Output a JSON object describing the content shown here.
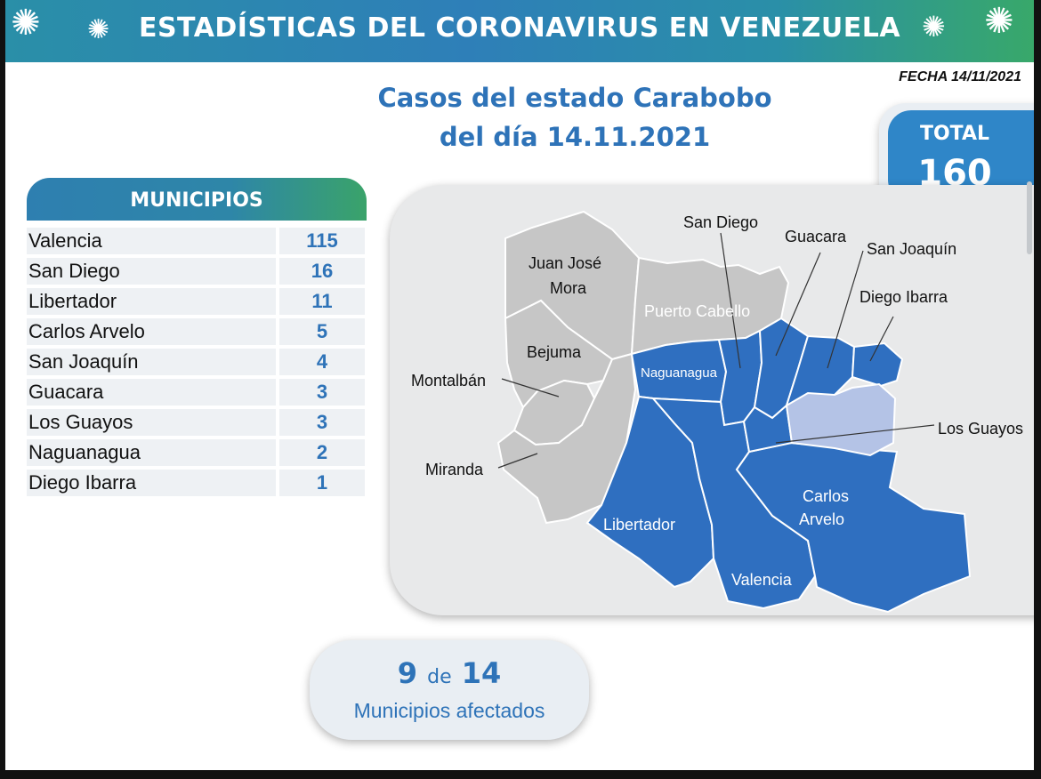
{
  "banner": {
    "title": "ESTADÍSTICAS DEL CORONAVIRUS EN VENEZUELA",
    "colors": {
      "start": "#2a8fa8",
      "end": "#38a86a"
    },
    "icons": [
      "coronavirus-icon",
      "coronavirus-icon",
      "coronavirus-icon",
      "coronavirus-icon"
    ]
  },
  "fecha": "FECHA 14/11/2021",
  "headline": {
    "line1": "Casos del estado Carabobo",
    "line2": "del día 14.11.2021"
  },
  "total": {
    "label": "TOTAL",
    "value": "160"
  },
  "municipios": {
    "header": "MUNICIPIOS",
    "rows": [
      {
        "name": "Valencia",
        "value": "115"
      },
      {
        "name": "San Diego",
        "value": "16"
      },
      {
        "name": "Libertador",
        "value": "11"
      },
      {
        "name": "Carlos Arvelo",
        "value": "5"
      },
      {
        "name": "San Joaquín",
        "value": "4"
      },
      {
        "name": "Guacara",
        "value": "3"
      },
      {
        "name": "Los Guayos",
        "value": "3"
      },
      {
        "name": "Naguanagua",
        "value": "2"
      },
      {
        "name": "Diego Ibarra",
        "value": "1"
      }
    ]
  },
  "map": {
    "colors": {
      "affected": "#2f6fc0",
      "unaffected": "#c6c6c6",
      "lake": "#b4c3e6"
    },
    "labels": {
      "juan_jose_mora_1": "Juan José",
      "juan_jose_mora_2": "Mora",
      "puerto_cabello": "Puerto Cabello",
      "bejuma": "Bejuma",
      "montalban": "Montalbán",
      "miranda": "Miranda",
      "san_diego": "San Diego",
      "guacara": "Guacara",
      "san_joaquin": "San Joaquín",
      "diego_ibarra": "Diego Ibarra",
      "naguanagua": "Naguanagua",
      "los_guayos": "Los Guayos",
      "carlos_arvelo_1": "Carlos",
      "carlos_arvelo_2": "Arvelo",
      "libertador": "Libertador",
      "valencia": "Valencia"
    }
  },
  "summary": {
    "affected": "9",
    "of": "de",
    "total": "14",
    "caption": "Municipios afectados"
  }
}
